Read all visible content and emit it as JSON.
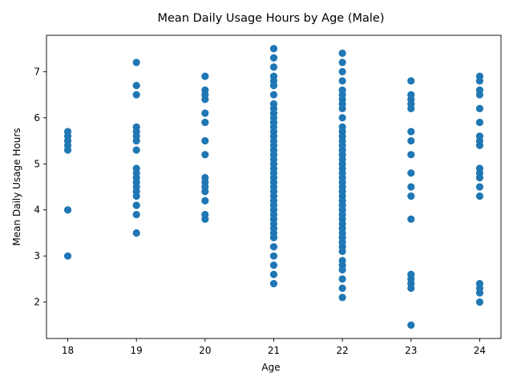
{
  "chart_data": {
    "type": "scatter",
    "title": "Mean Daily Usage Hours by Age (Male)",
    "xlabel": "Age",
    "ylabel": "Mean Daily Usage Hours",
    "x_ticks": [
      18,
      19,
      20,
      21,
      22,
      23,
      24
    ],
    "y_ticks": [
      2,
      3,
      4,
      5,
      6,
      7
    ],
    "xlim": [
      17.69,
      24.31
    ],
    "ylim": [
      1.21,
      7.79
    ],
    "grid": false,
    "color": "#1f77b4",
    "points_by_x": {
      "18": [
        5.7,
        5.6,
        5.5,
        5.4,
        5.3,
        4.0,
        3.0
      ],
      "19": [
        7.2,
        6.7,
        6.5,
        5.8,
        5.7,
        5.6,
        5.5,
        5.3,
        4.9,
        4.8,
        4.7,
        4.6,
        4.5,
        4.4,
        4.3,
        4.1,
        3.9,
        3.5
      ],
      "20": [
        6.9,
        6.6,
        6.5,
        6.4,
        6.1,
        5.9,
        5.5,
        5.2,
        4.7,
        4.6,
        4.5,
        4.4,
        4.2,
        3.9,
        3.8
      ],
      "21": [
        7.5,
        7.3,
        7.1,
        6.9,
        6.8,
        6.7,
        6.5,
        6.3,
        6.2,
        6.1,
        6.0,
        5.9,
        5.8,
        5.7,
        5.6,
        5.5,
        5.4,
        5.3,
        5.2,
        5.1,
        5.0,
        4.9,
        4.8,
        4.7,
        4.6,
        4.5,
        4.4,
        4.3,
        4.2,
        4.1,
        4.0,
        3.9,
        3.8,
        3.7,
        3.6,
        3.5,
        3.4,
        3.2,
        3.0,
        2.8,
        2.6,
        2.4
      ],
      "22": [
        7.4,
        7.2,
        7.0,
        6.8,
        6.6,
        6.5,
        6.4,
        6.3,
        6.2,
        6.0,
        5.8,
        5.7,
        5.6,
        5.5,
        5.4,
        5.3,
        5.2,
        5.1,
        5.0,
        4.9,
        4.8,
        4.7,
        4.6,
        4.5,
        4.4,
        4.3,
        4.2,
        4.1,
        4.0,
        3.9,
        3.8,
        3.7,
        3.6,
        3.5,
        3.4,
        3.3,
        3.2,
        3.1,
        2.9,
        2.8,
        2.7,
        2.5,
        2.3,
        2.1
      ],
      "23": [
        6.8,
        6.5,
        6.4,
        6.3,
        6.2,
        5.7,
        5.5,
        5.2,
        4.8,
        4.5,
        4.3,
        3.8,
        2.6,
        2.5,
        2.4,
        2.3,
        1.5
      ],
      "24": [
        6.9,
        6.8,
        6.6,
        6.5,
        6.2,
        5.9,
        5.6,
        5.5,
        5.4,
        4.9,
        4.8,
        4.7,
        4.5,
        4.3,
        2.4,
        2.3,
        2.2,
        2.0
      ]
    }
  }
}
